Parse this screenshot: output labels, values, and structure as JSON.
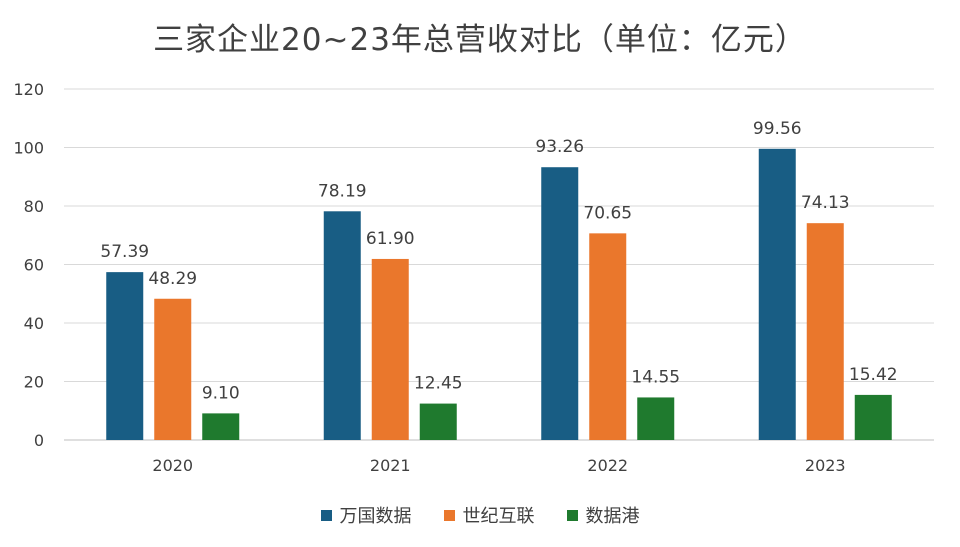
{
  "chart_data": {
    "type": "bar",
    "title": "三家企业20~23年总营收对比（单位：亿元）",
    "categories": [
      "2020",
      "2021",
      "2022",
      "2023"
    ],
    "series": [
      {
        "name": "万国数据",
        "color": "#185d84",
        "values": [
          57.39,
          78.19,
          93.26,
          99.56
        ],
        "labels": [
          "57.39",
          "78.19",
          "93.26",
          "99.56"
        ]
      },
      {
        "name": "世纪互联",
        "color": "#ea772c",
        "values": [
          48.29,
          61.9,
          70.65,
          74.13
        ],
        "labels": [
          "48.29",
          "61.90",
          "70.65",
          "74.13"
        ]
      },
      {
        "name": "数据港",
        "color": "#1f7a2e",
        "values": [
          9.1,
          12.45,
          14.55,
          15.42
        ],
        "labels": [
          "9.10",
          "12.45",
          "14.55",
          "15.42"
        ]
      }
    ],
    "y_ticks": [
      "0",
      "20",
      "40",
      "60",
      "80",
      "100",
      "120"
    ],
    "ylim": [
      0,
      120
    ],
    "grid": true,
    "legend_position": "bottom"
  }
}
